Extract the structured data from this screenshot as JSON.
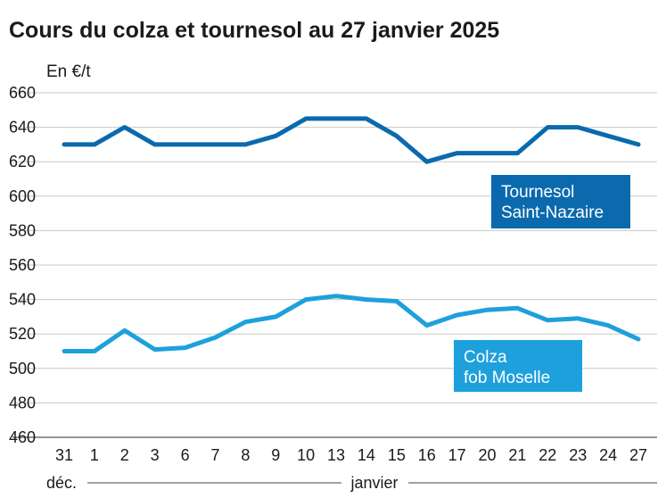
{
  "chart_data": {
    "type": "line",
    "title": "Cours du colza et tournesol au 27 janvier 2025",
    "ylabel": "En €/t",
    "ylim": [
      460,
      660
    ],
    "yticks": [
      460,
      480,
      500,
      520,
      540,
      560,
      580,
      600,
      620,
      640,
      660
    ],
    "categories": [
      "31",
      "1",
      "2",
      "3",
      "6",
      "7",
      "8",
      "9",
      "10",
      "13",
      "14",
      "15",
      "16",
      "17",
      "20",
      "21",
      "22",
      "23",
      "24",
      "27"
    ],
    "periods": [
      {
        "label": "déc.",
        "start_index": 0,
        "end_index": 0
      },
      {
        "label": "janvier",
        "start_index": 1,
        "end_index": 19
      }
    ],
    "grid": true,
    "series": [
      {
        "name": "Tournesol Saint-Nazaire",
        "label_lines": [
          "Tournesol",
          "Saint-Nazaire"
        ],
        "color": "#0a6aad",
        "values": [
          630,
          630,
          640,
          630,
          630,
          630,
          630,
          635,
          645,
          645,
          645,
          635,
          620,
          625,
          625,
          625,
          640,
          640,
          635,
          630
        ]
      },
      {
        "name": "Colza fob Moselle",
        "label_lines": [
          "Colza",
          "fob Moselle"
        ],
        "color": "#1ea0dc",
        "values": [
          510,
          510,
          522,
          511,
          512,
          518,
          527,
          530,
          540,
          542,
          540,
          539,
          525,
          531,
          534,
          535,
          528,
          529,
          525,
          517
        ]
      }
    ]
  }
}
